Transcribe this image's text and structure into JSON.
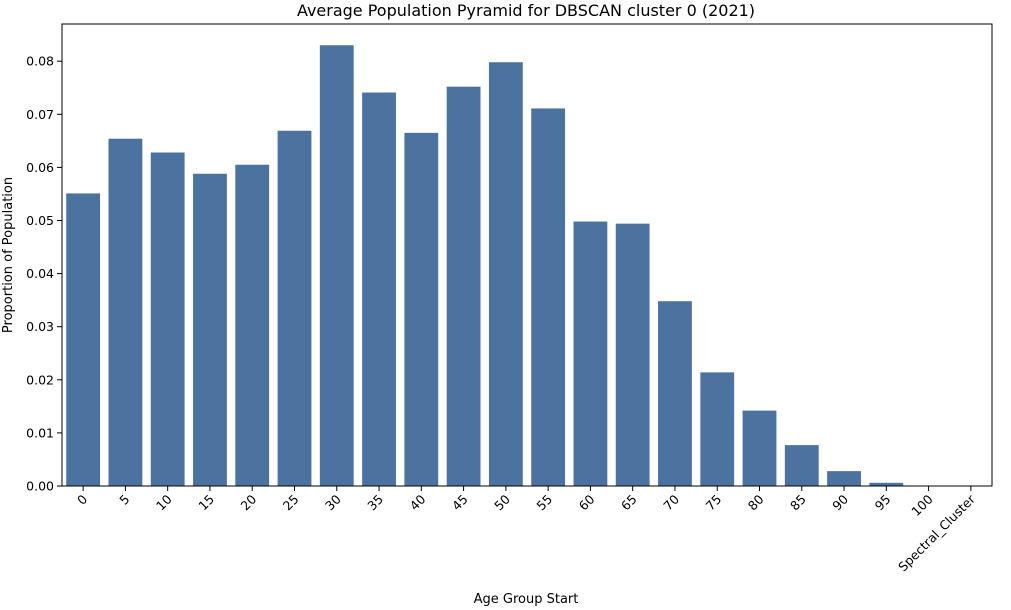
{
  "chart_data": {
    "type": "bar",
    "title": "Average Population Pyramid for DBSCAN cluster 0 (2021)",
    "xlabel": "Age Group Start",
    "ylabel": "Proportion of Population",
    "categories": [
      "0",
      "5",
      "10",
      "15",
      "20",
      "25",
      "30",
      "35",
      "40",
      "45",
      "50",
      "55",
      "60",
      "65",
      "70",
      "75",
      "80",
      "85",
      "90",
      "95",
      "100",
      "Spectral_Cluster"
    ],
    "values": [
      0.0551,
      0.0654,
      0.0628,
      0.0588,
      0.0605,
      0.0669,
      0.083,
      0.0741,
      0.0665,
      0.0752,
      0.0798,
      0.0711,
      0.0498,
      0.0494,
      0.0348,
      0.0214,
      0.0142,
      0.0077,
      0.0028,
      0.0006,
      0.0,
      0.0
    ],
    "ylim": [
      0,
      0.087
    ],
    "yticks": [
      0.0,
      0.01,
      0.02,
      0.03,
      0.04,
      0.05,
      0.06,
      0.07,
      0.08
    ],
    "ytick_labels": [
      "0.00",
      "0.01",
      "0.02",
      "0.03",
      "0.04",
      "0.05",
      "0.06",
      "0.07",
      "0.08"
    ],
    "bar_color": "#4c72a0",
    "grid": false,
    "legend": "none"
  }
}
